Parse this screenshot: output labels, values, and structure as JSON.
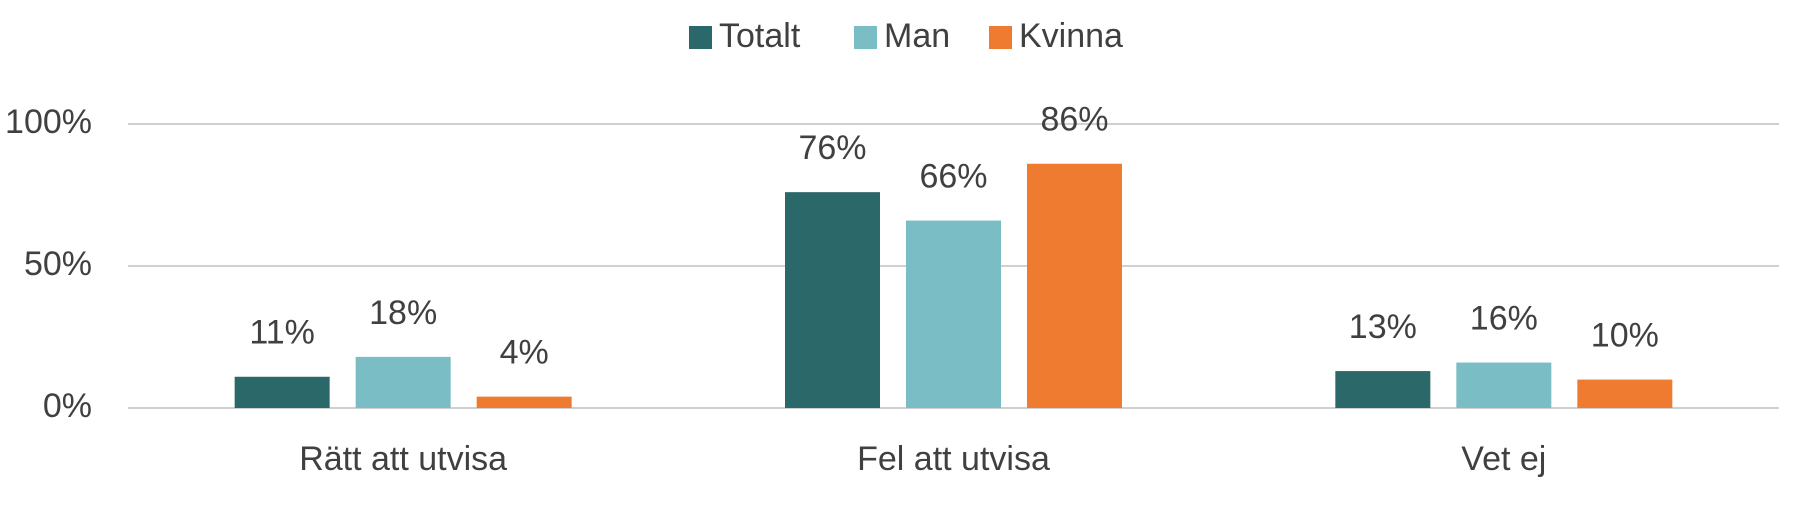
{
  "chart_data": {
    "type": "bar",
    "categories": [
      "Rätt att utvisa",
      "Fel att utvisa",
      "Vet ej"
    ],
    "series": [
      {
        "name": "Totalt",
        "color": "#2b6869",
        "values": [
          11,
          76,
          13
        ],
        "value_labels": [
          "11%",
          "76%",
          "13%"
        ]
      },
      {
        "name": "Man",
        "color": "#7bbdc5",
        "values": [
          18,
          66,
          16
        ],
        "value_labels": [
          "18%",
          "66%",
          "16%"
        ]
      },
      {
        "name": "Kvinna",
        "color": "#ef7b31",
        "values": [
          4,
          86,
          10
        ],
        "value_labels": [
          "4%",
          "86%",
          "10%"
        ]
      }
    ],
    "ylim": [
      0,
      100
    ],
    "yticks": [
      {
        "value": 0,
        "label": "0%"
      },
      {
        "value": 50,
        "label": "50%"
      },
      {
        "value": 100,
        "label": "100%"
      }
    ],
    "grid": true,
    "legend": "top"
  }
}
